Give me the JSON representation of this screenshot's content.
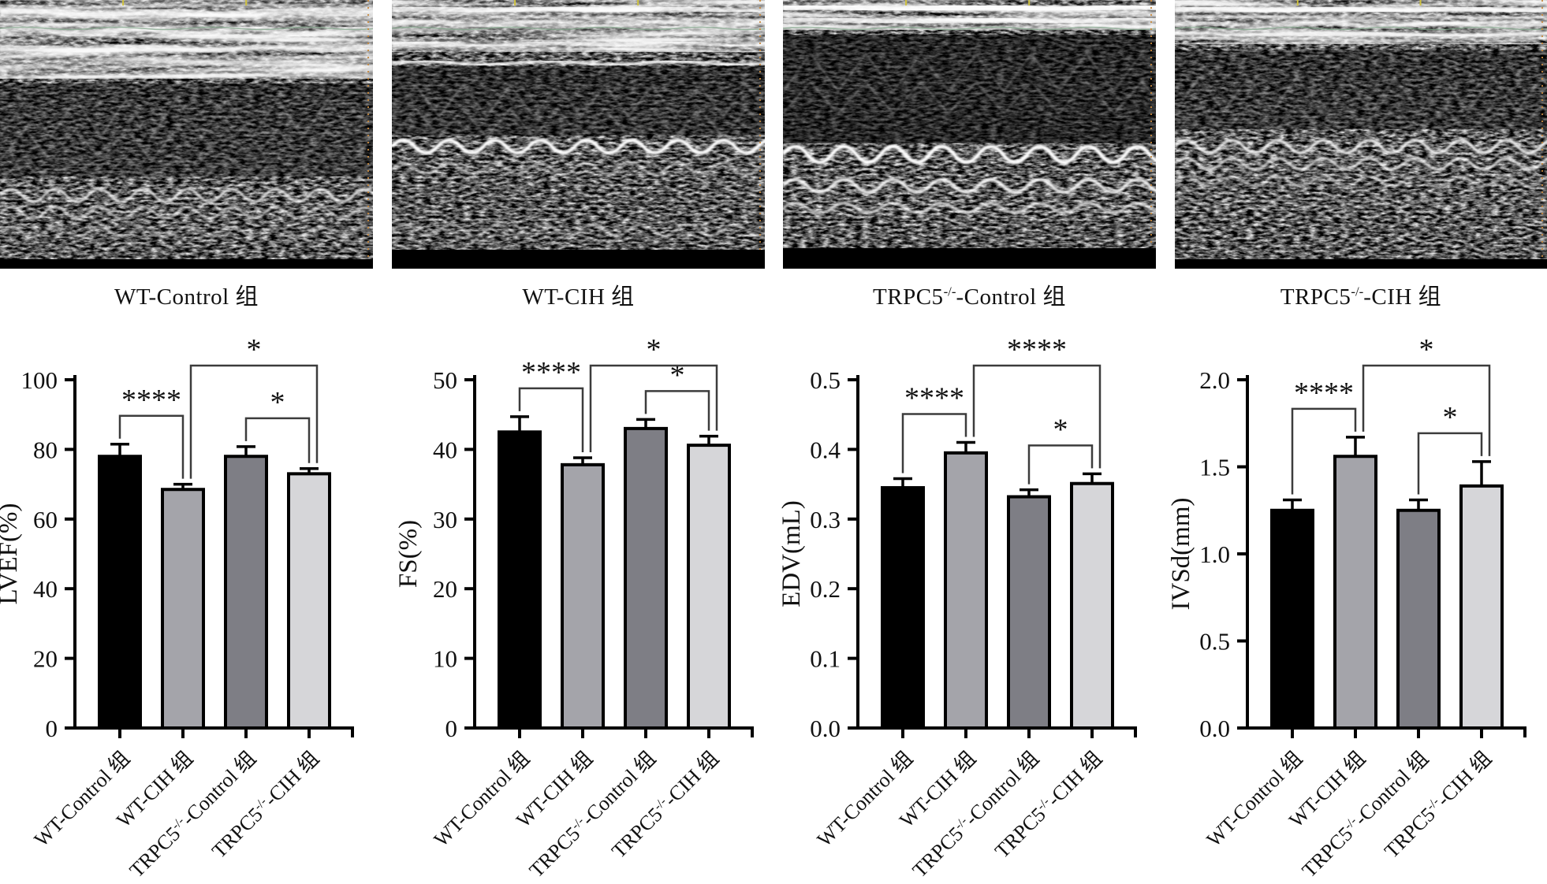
{
  "figure": {
    "background": "#ffffff"
  },
  "echo_panels": [
    {
      "caption": {
        "pre": "WT-Control 组",
        "sup": "",
        "post": ""
      }
    },
    {
      "caption": {
        "pre": "WT-CIH 组",
        "sup": "",
        "post": ""
      }
    },
    {
      "caption": {
        "pre": "TRPC5",
        "sup": "-/-",
        "post": "-Control 组"
      }
    },
    {
      "caption": {
        "pre": "TRPC5",
        "sup": "-/-",
        "post": "-CIH 组"
      }
    }
  ],
  "colors": {
    "bar_fills": [
      "#000000",
      "#a4a4aa",
      "#7e7e85",
      "#d6d6d9"
    ],
    "bar_stroke": "#000000",
    "axis": "#000000",
    "bracket": "#3c3c3c",
    "text": "#111111"
  },
  "chart_data": [
    {
      "type": "bar",
      "title": "",
      "xlabel": "",
      "ylabel": "LVEF(%)",
      "ylim": [
        0,
        100
      ],
      "yticks": [
        0,
        20,
        40,
        60,
        80,
        100
      ],
      "ytick_labels": [
        "0",
        "20",
        "40",
        "60",
        "80",
        "100"
      ],
      "categories": [
        {
          "pre": "WT-Control 组",
          "sup": "",
          "post": ""
        },
        {
          "pre": "WT-CIH 组",
          "sup": "",
          "post": ""
        },
        {
          "pre": "TRPC5",
          "sup": "-/-",
          "post": "-Control 组"
        },
        {
          "pre": "TRPC5",
          "sup": "-/-",
          "post": "-CIH 组"
        }
      ],
      "values": [
        78,
        68.5,
        78,
        73
      ],
      "errors": [
        3.5,
        1.5,
        2.8,
        1.5
      ],
      "comparisons": [
        {
          "a": 0,
          "b": 1,
          "label": "****",
          "level": 0
        },
        {
          "a": 2,
          "b": 3,
          "label": "*",
          "level": 0
        },
        {
          "a": 1,
          "b": 3,
          "label": "*",
          "level": 1
        }
      ],
      "grid": false,
      "legend": "none"
    },
    {
      "type": "bar",
      "title": "",
      "xlabel": "",
      "ylabel": "FS(%)",
      "ylim": [
        0,
        50
      ],
      "yticks": [
        0,
        10,
        20,
        30,
        40,
        50
      ],
      "ytick_labels": [
        "0",
        "10",
        "20",
        "30",
        "40",
        "50"
      ],
      "categories": [
        {
          "pre": "WT-Control 组",
          "sup": "",
          "post": ""
        },
        {
          "pre": "WT-CIH 组",
          "sup": "",
          "post": ""
        },
        {
          "pre": "TRPC5",
          "sup": "-/-",
          "post": "-Control 组"
        },
        {
          "pre": "TRPC5",
          "sup": "-/-",
          "post": "-CIH 组"
        }
      ],
      "values": [
        42.5,
        37.8,
        43,
        40.6
      ],
      "errors": [
        2.2,
        1.0,
        1.3,
        1.3
      ],
      "comparisons": [
        {
          "a": 0,
          "b": 1,
          "label": "****",
          "level": 0
        },
        {
          "a": 2,
          "b": 3,
          "label": "*",
          "level": 0
        },
        {
          "a": 1,
          "b": 3,
          "label": "*",
          "level": 1
        }
      ],
      "grid": false,
      "legend": "none"
    },
    {
      "type": "bar",
      "title": "",
      "xlabel": "",
      "ylabel": "EDV(mL)",
      "ylim": [
        0,
        0.5
      ],
      "yticks": [
        0,
        0.1,
        0.2,
        0.3,
        0.4,
        0.5
      ],
      "ytick_labels": [
        "0.0",
        "0.1",
        "0.2",
        "0.3",
        "0.4",
        "0.5"
      ],
      "categories": [
        {
          "pre": "WT-Control 组",
          "sup": "",
          "post": ""
        },
        {
          "pre": "WT-CIH 组",
          "sup": "",
          "post": ""
        },
        {
          "pre": "TRPC5",
          "sup": "-/-",
          "post": "-Control 组"
        },
        {
          "pre": "TRPC5",
          "sup": "-/-",
          "post": "-CIH 组"
        }
      ],
      "values": [
        0.345,
        0.395,
        0.332,
        0.351
      ],
      "errors": [
        0.013,
        0.015,
        0.01,
        0.014
      ],
      "comparisons": [
        {
          "a": 0,
          "b": 1,
          "label": "****",
          "level": 0
        },
        {
          "a": 2,
          "b": 3,
          "label": "*",
          "level": 0
        },
        {
          "a": 1,
          "b": 3,
          "label": "****",
          "level": 1
        }
      ],
      "grid": false,
      "legend": "none"
    },
    {
      "type": "bar",
      "title": "",
      "xlabel": "",
      "ylabel": "IVSd(mm)",
      "ylim": [
        0,
        2.0
      ],
      "yticks": [
        0,
        0.5,
        1.0,
        1.5,
        2.0
      ],
      "ytick_labels": [
        "0.0",
        "0.5",
        "1.0",
        "1.5",
        "2.0"
      ],
      "categories": [
        {
          "pre": "WT-Control 组",
          "sup": "",
          "post": ""
        },
        {
          "pre": "WT-CIH 组",
          "sup": "",
          "post": ""
        },
        {
          "pre": "TRPC5",
          "sup": "-/-",
          "post": "-Control 组"
        },
        {
          "pre": "TRPC5",
          "sup": "-/-",
          "post": "-CIH 组"
        }
      ],
      "values": [
        1.25,
        1.56,
        1.25,
        1.39
      ],
      "errors": [
        0.06,
        0.11,
        0.06,
        0.14
      ],
      "comparisons": [
        {
          "a": 0,
          "b": 1,
          "label": "****",
          "level": 0
        },
        {
          "a": 2,
          "b": 3,
          "label": "*",
          "level": 0
        },
        {
          "a": 1,
          "b": 3,
          "label": "*",
          "level": 1
        }
      ],
      "grid": false,
      "legend": "none"
    }
  ]
}
